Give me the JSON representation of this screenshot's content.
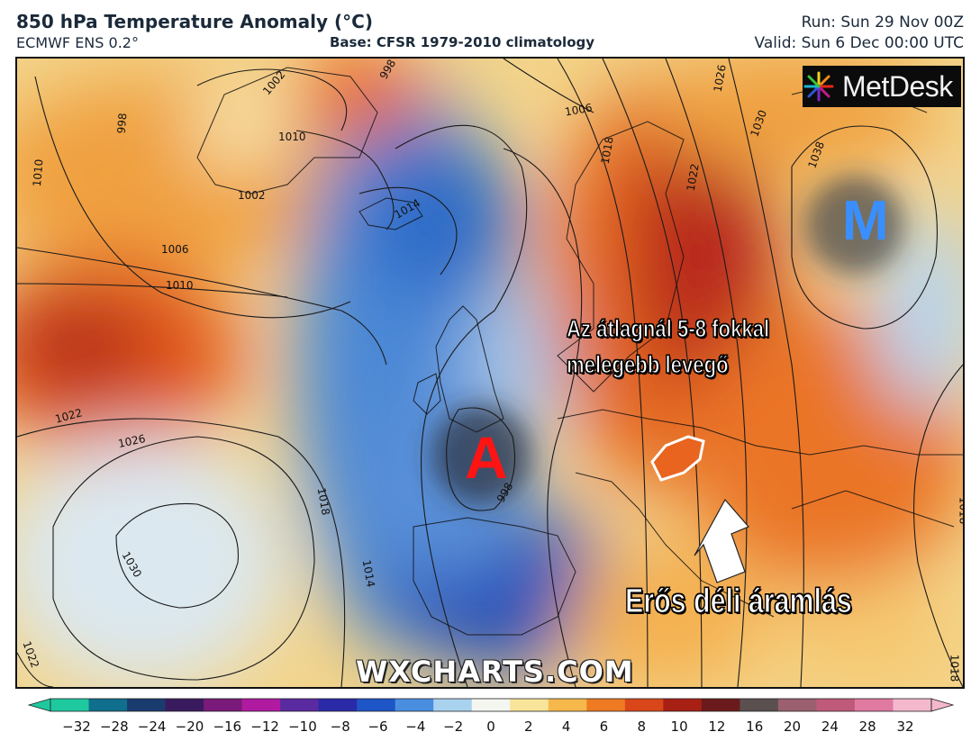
{
  "header": {
    "title": "850 hPa Temperature Anomaly (°C)",
    "model": "ECMWF ENS 0.2°",
    "base": "Base: CFSR 1979-2010 climatology",
    "run": "Run: Sun 29 Nov 00Z",
    "valid": "Valid: Sun 6 Dec 00:00 UTC"
  },
  "logo": {
    "text": "MetDesk",
    "icon": "pinwheel-logo-icon"
  },
  "markers": {
    "low": "A",
    "high": "M",
    "low_color": "#ff1414",
    "high_color": "#3a8fff"
  },
  "annotations": {
    "warm_line1": "Az átlagnál 5-8 fokkal",
    "warm_line2": "melegebb levegő",
    "south_flow": "Erős déli áramlás",
    "arrow_icon": "arrow-up-icon",
    "hungary_outline": "hungary-outline"
  },
  "watermark": "WXCHARTS.COM",
  "isobars": [
    "998",
    "1002",
    "1006",
    "1010",
    "1006",
    "1010",
    "1002",
    "1006",
    "1014",
    "1022",
    "1026",
    "1030",
    "1018",
    "1014",
    "998",
    "1022",
    "1018",
    "1030",
    "1038",
    "1026",
    "1022",
    "1018",
    "1014"
  ],
  "colorbar": {
    "ticks": [
      "−32",
      "−28",
      "−24",
      "−20",
      "−16",
      "−12",
      "−10",
      "−8",
      "−6",
      "−4",
      "−2",
      "0",
      "2",
      "4",
      "6",
      "8",
      "10",
      "12",
      "16",
      "20",
      "24",
      "28",
      "32"
    ],
    "colors": [
      "#1fc9a0",
      "#0f6f8c",
      "#1a3b6e",
      "#3a1a5e",
      "#7a1a7a",
      "#b01aa0",
      "#5a2aa0",
      "#2a2aa8",
      "#1e56c8",
      "#4a8ee0",
      "#a9d2ef",
      "#f4f6f0",
      "#f8e49a",
      "#f6b84a",
      "#ee7a22",
      "#d8461a",
      "#a81f14",
      "#6a1a1a",
      "#5a5050",
      "#9a6070",
      "#c05a7a",
      "#e07aa0",
      "#f4b8cc"
    ]
  },
  "colors": {
    "ocean_cold": "#3f7ed3",
    "warm": "#e8641f",
    "hot": "#a8210f"
  }
}
